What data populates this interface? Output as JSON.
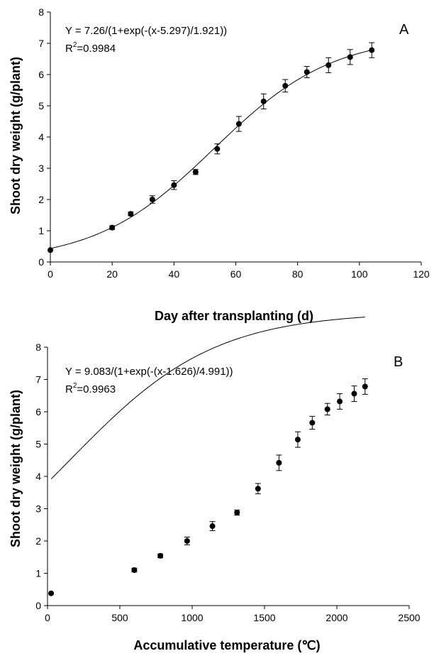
{
  "chart_data": [
    {
      "type": "scatter",
      "panel_label": "A",
      "equation": "Y = 7.26/(1+exp(-(x-5.297)/1.921))",
      "r2_prefix": "R",
      "r2_exp": "2",
      "r2_value": "=0.9984",
      "xlabel": "Day after transplanting (d)",
      "ylabel": "Shoot dry weight (g/plant)",
      "xlim": [
        0,
        120
      ],
      "ylim": [
        0,
        8
      ],
      "xticks": [
        0,
        20,
        40,
        60,
        80,
        100,
        120
      ],
      "yticks": [
        0,
        1,
        2,
        3,
        4,
        5,
        6,
        7,
        8
      ],
      "fit": {
        "a": 7.26,
        "x0": 5.297,
        "b": 1.921,
        "x_scale": 10
      },
      "series": [
        {
          "points": [
            {
              "x": 0,
              "y": 0.38,
              "err": 0
            },
            {
              "x": 20,
              "y": 1.1,
              "err": 0.06
            },
            {
              "x": 26,
              "y": 1.54,
              "err": 0.06
            },
            {
              "x": 33,
              "y": 2.0,
              "err": 0.12
            },
            {
              "x": 40,
              "y": 2.46,
              "err": 0.14
            },
            {
              "x": 47,
              "y": 2.88,
              "err": 0.08
            },
            {
              "x": 54,
              "y": 3.62,
              "err": 0.16
            },
            {
              "x": 61,
              "y": 4.42,
              "err": 0.24
            },
            {
              "x": 69,
              "y": 5.14,
              "err": 0.24
            },
            {
              "x": 76,
              "y": 5.64,
              "err": 0.2
            },
            {
              "x": 83,
              "y": 6.08,
              "err": 0.18
            },
            {
              "x": 90,
              "y": 6.3,
              "err": 0.24
            },
            {
              "x": 97,
              "y": 6.56,
              "err": 0.24
            },
            {
              "x": 104,
              "y": 6.78,
              "err": 0.24
            }
          ]
        }
      ]
    },
    {
      "type": "scatter",
      "panel_label": "B",
      "equation": "Y = 9.083/(1+exp(-(x-1.626)/4.991))",
      "r2_prefix": "R",
      "r2_exp": "2",
      "r2_value": "=0.9963",
      "xlabel": "Accumulative temperature (℃)",
      "ylabel": "Shoot dry weight (g/plant)",
      "xlim": [
        0,
        2500
      ],
      "ylim": [
        0,
        8
      ],
      "xticks": [
        0,
        500,
        1000,
        1500,
        2000,
        2500
      ],
      "yticks": [
        0,
        1,
        2,
        3,
        4,
        5,
        6,
        7,
        8
      ],
      "fit": {
        "a": 9.083,
        "x0": 1.626,
        "b": 4.991,
        "x_scale": 100
      },
      "series": [
        {
          "points": [
            {
              "x": 25,
              "y": 0.38,
              "err": 0
            },
            {
              "x": 600,
              "y": 1.1,
              "err": 0.06
            },
            {
              "x": 780,
              "y": 1.54,
              "err": 0.06
            },
            {
              "x": 965,
              "y": 2.0,
              "err": 0.12
            },
            {
              "x": 1140,
              "y": 2.46,
              "err": 0.14
            },
            {
              "x": 1310,
              "y": 2.88,
              "err": 0.08
            },
            {
              "x": 1455,
              "y": 3.62,
              "err": 0.16
            },
            {
              "x": 1600,
              "y": 4.42,
              "err": 0.24
            },
            {
              "x": 1730,
              "y": 5.14,
              "err": 0.24
            },
            {
              "x": 1830,
              "y": 5.66,
              "err": 0.2
            },
            {
              "x": 1935,
              "y": 6.08,
              "err": 0.18
            },
            {
              "x": 2020,
              "y": 6.32,
              "err": 0.24
            },
            {
              "x": 2120,
              "y": 6.56,
              "err": 0.24
            },
            {
              "x": 2195,
              "y": 6.78,
              "err": 0.24
            }
          ]
        }
      ]
    }
  ]
}
